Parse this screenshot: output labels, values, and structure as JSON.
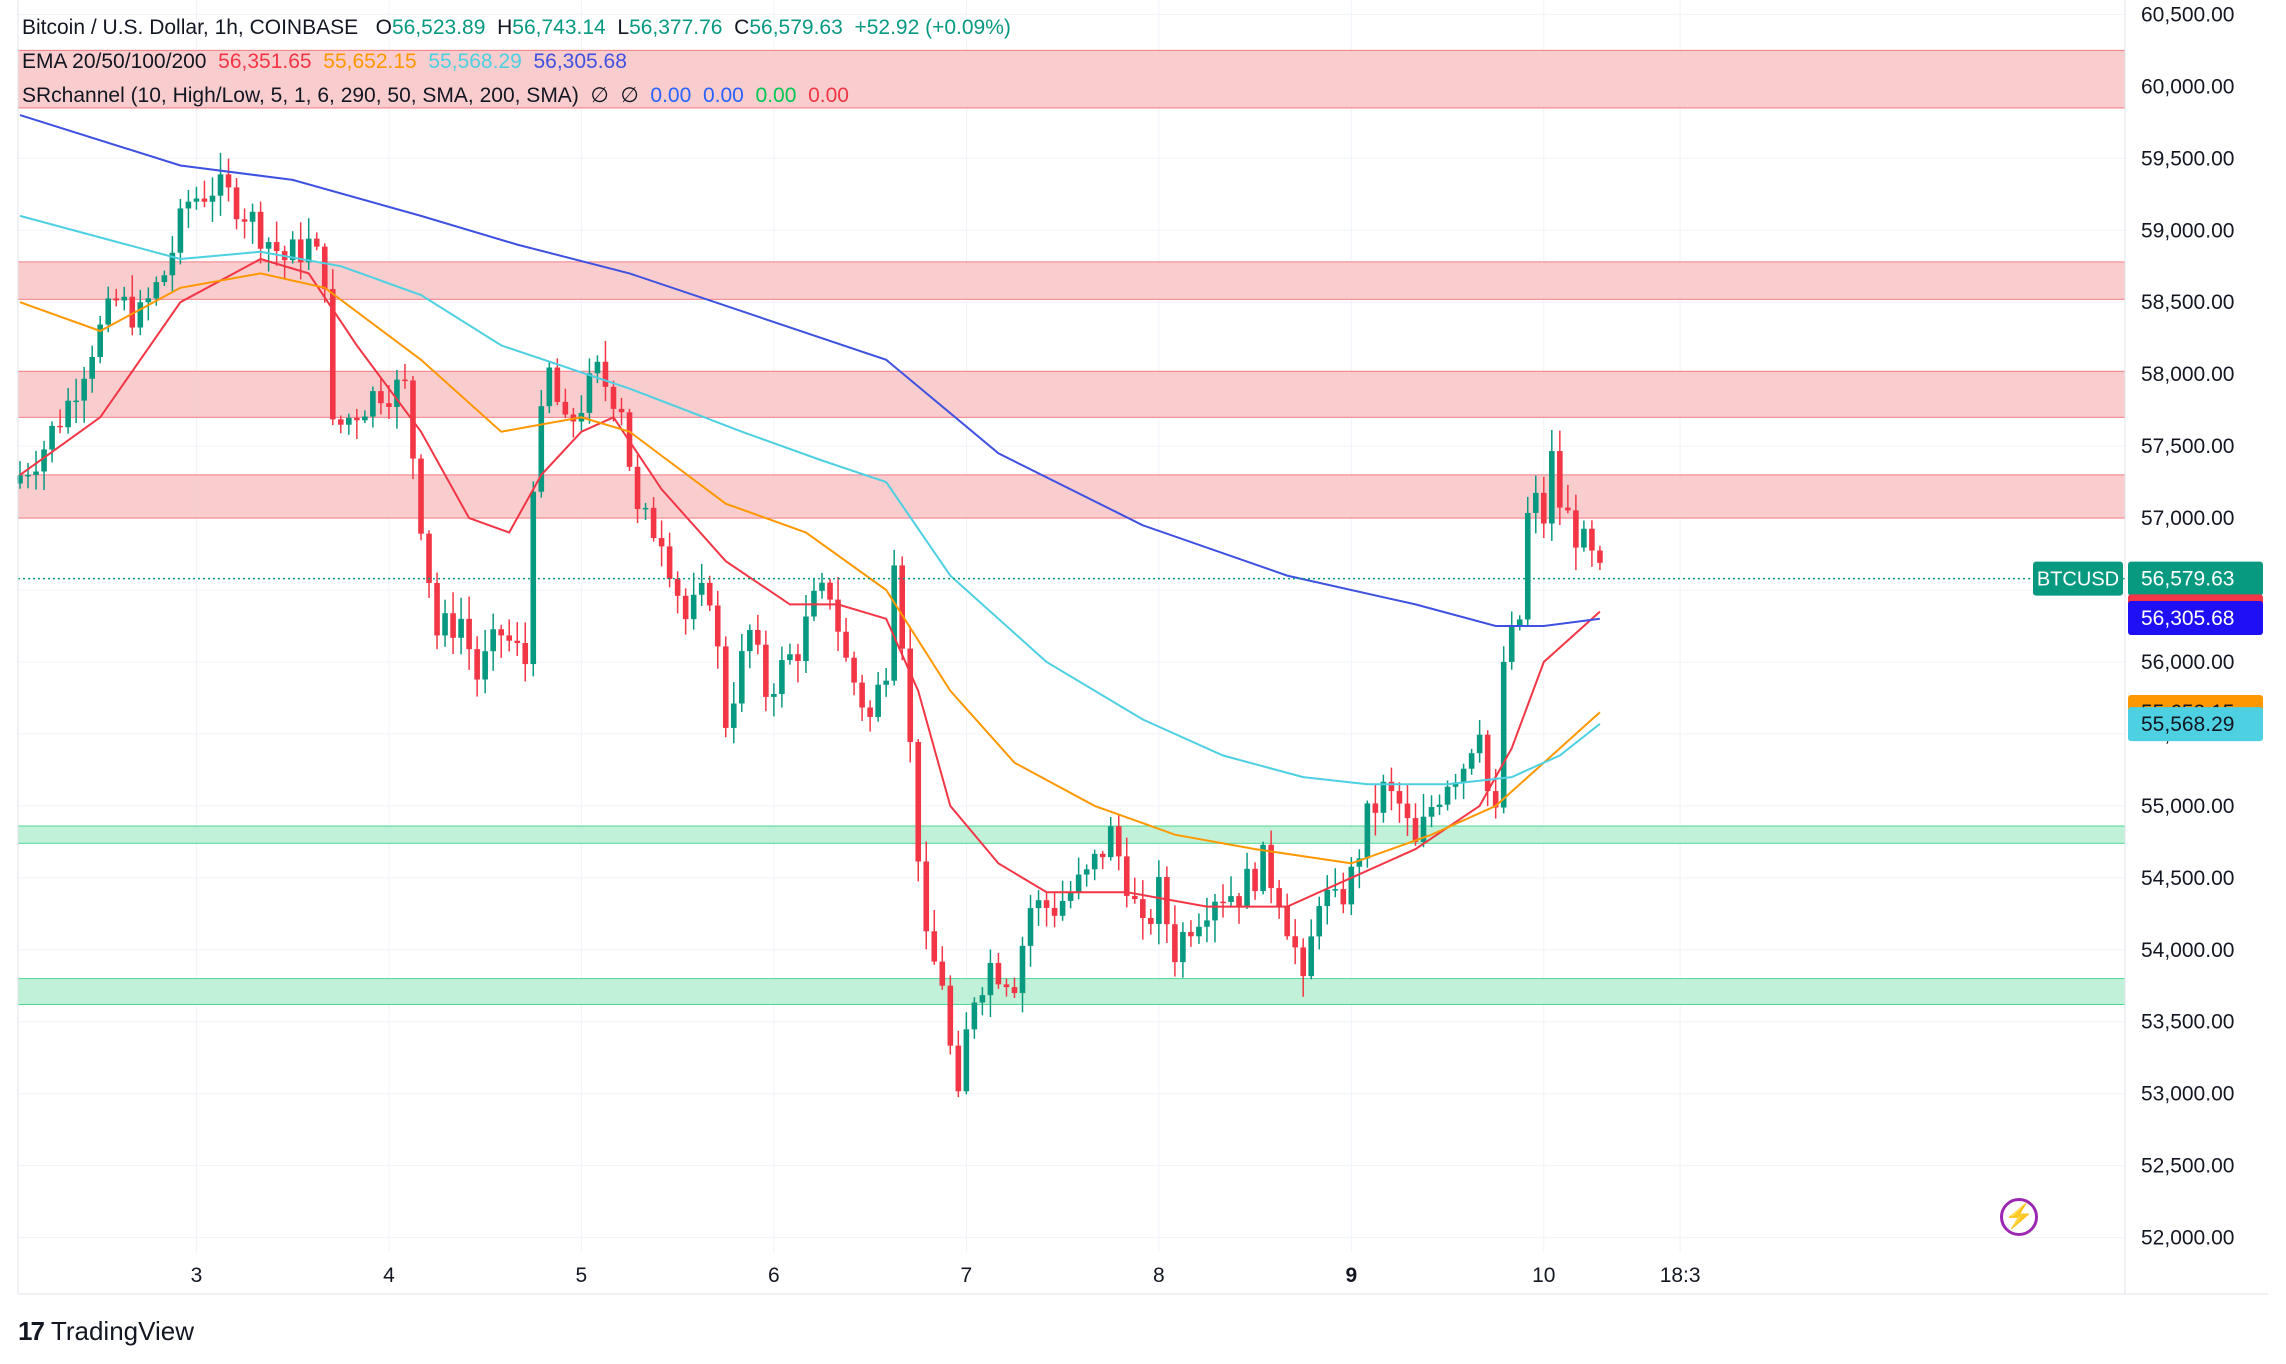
{
  "header": {
    "symbol": "Bitcoin / U.S. Dollar, 1h, COINBASE",
    "open_label": "O",
    "open": "56,523.89",
    "high_label": "H",
    "high": "56,743.14",
    "low_label": "L",
    "low": "56,377.76",
    "close_label": "C",
    "close": "56,579.63",
    "change": "+52.92 (+0.09%)"
  },
  "ema_legend": {
    "label": "EMA 20/50/100/200",
    "v20": "56,351.65",
    "v50": "55,652.15",
    "v100": "55,568.29",
    "v200": "56,305.68"
  },
  "sr_legend": {
    "label": "SRchannel (10, High/Low, 5, 1, 6, 290, 50, SMA, 200, SMA)",
    "symbol_a": "∅",
    "symbol_b": "∅",
    "v1": "0.00",
    "v2": "0.00",
    "v3": "0.00",
    "v4": "0.00"
  },
  "colors": {
    "up": "#089981",
    "down": "#f23645",
    "ema20": "#f23645",
    "ema50": "#ff9800",
    "ema100": "#4dd0e1",
    "ema200": "#3f51e0",
    "resistance": "#f8c4c6",
    "support": "#b6f0d2",
    "price_tag": "#089981"
  },
  "footer": {
    "brand": "TradingView",
    "mark": "17",
    "bolt_icon": "lightning-bolt-icon"
  },
  "chart_data": {
    "type": "candlestick",
    "title": "Bitcoin / U.S. Dollar, 1h, COINBASE",
    "ylim": [
      51900,
      60600
    ],
    "y_ticks": [
      "52,000.00",
      "52,500.00",
      "53,000.00",
      "53,500.00",
      "54,000.00",
      "54,500.00",
      "55,000.00",
      "55,500.00",
      "56,000.00",
      "56,500.00",
      "57,000.00",
      "57,500.00",
      "58,000.00",
      "58,500.00",
      "59,000.00",
      "59,500.00",
      "60,000.00",
      "60,500.00"
    ],
    "y_tick_values": [
      52000,
      52500,
      53000,
      53500,
      54000,
      54500,
      55000,
      55500,
      56000,
      56500,
      57000,
      57500,
      58000,
      58500,
      59000,
      59500,
      60000,
      60500
    ],
    "x_ticks": [
      "3",
      "4",
      "5",
      "6",
      "7",
      "8",
      "9",
      "10",
      "18:3"
    ],
    "x_tick_hours": [
      22,
      46,
      70,
      94,
      118,
      142,
      166,
      190,
      207
    ],
    "bold_x_ticks": [
      "9"
    ],
    "last_hour": 197,
    "current_price": 56579.63,
    "price_labels": [
      {
        "name": "BTCUSD",
        "text": "BTCUSD",
        "value": "56,579.63",
        "price": 56579.63,
        "color": "#089981"
      },
      {
        "name": "ema20",
        "value": "56,351.65",
        "price": 56351.65,
        "color": "#f23645"
      },
      {
        "name": "ema200",
        "value": "56,305.68",
        "price": 56305.68,
        "color": "#1e0ff5"
      },
      {
        "name": "ema50",
        "value": "55,652.15",
        "price": 55652.15,
        "color": "#ff9800"
      },
      {
        "name": "ema100",
        "value": "55,568.29",
        "price": 55568.29,
        "color": "#4dd0e1"
      }
    ],
    "resistance_zones": [
      [
        59850,
        60250
      ],
      [
        58520,
        58780
      ],
      [
        57700,
        58020
      ],
      [
        57000,
        57300
      ]
    ],
    "support_zones": [
      [
        54740,
        54860
      ],
      [
        53620,
        53800
      ]
    ],
    "candle_keypoints": [
      [
        0,
        57300
      ],
      [
        3,
        57500
      ],
      [
        6,
        57800
      ],
      [
        9,
        58200
      ],
      [
        12,
        58500
      ],
      [
        15,
        58400
      ],
      [
        18,
        58700
      ],
      [
        21,
        59200
      ],
      [
        24,
        59300
      ],
      [
        27,
        59200
      ],
      [
        30,
        59000
      ],
      [
        33,
        58800
      ],
      [
        36,
        58900
      ],
      [
        38,
        58700
      ],
      [
        39,
        57600
      ],
      [
        41,
        57700
      ],
      [
        45,
        57900
      ],
      [
        48,
        57900
      ],
      [
        50,
        57000
      ],
      [
        52,
        56200
      ],
      [
        55,
        56300
      ],
      [
        57,
        55900
      ],
      [
        60,
        56200
      ],
      [
        63,
        56000
      ],
      [
        64,
        57300
      ],
      [
        66,
        58000
      ],
      [
        68,
        57600
      ],
      [
        72,
        58000
      ],
      [
        75,
        57800
      ],
      [
        77,
        57000
      ],
      [
        80,
        56900
      ],
      [
        83,
        56300
      ],
      [
        86,
        56500
      ],
      [
        88,
        55600
      ],
      [
        91,
        56200
      ],
      [
        93,
        55800
      ],
      [
        97,
        56100
      ],
      [
        99,
        56400
      ],
      [
        101,
        56500
      ],
      [
        103,
        56000
      ],
      [
        106,
        55600
      ],
      [
        108,
        56000
      ],
      [
        109,
        56800
      ],
      [
        110,
        56200
      ],
      [
        111,
        55400
      ],
      [
        112,
        54700
      ],
      [
        113,
        54000
      ],
      [
        115,
        53800
      ],
      [
        116,
        53300
      ],
      [
        117,
        52900
      ],
      [
        118,
        53400
      ],
      [
        119,
        53700
      ],
      [
        121,
        53900
      ],
      [
        124,
        53800
      ],
      [
        126,
        54300
      ],
      [
        129,
        54300
      ],
      [
        133,
        54500
      ],
      [
        136,
        54800
      ],
      [
        138,
        54500
      ],
      [
        140,
        54100
      ],
      [
        142,
        54400
      ],
      [
        144,
        54000
      ],
      [
        146,
        54200
      ],
      [
        149,
        54400
      ],
      [
        152,
        54400
      ],
      [
        155,
        54600
      ],
      [
        157,
        54400
      ],
      [
        159,
        54000
      ],
      [
        160,
        53700
      ],
      [
        162,
        54400
      ],
      [
        164,
        54300
      ],
      [
        166,
        54500
      ],
      [
        168,
        54900
      ],
      [
        170,
        55100
      ],
      [
        172,
        55000
      ],
      [
        174,
        54700
      ],
      [
        176,
        55000
      ],
      [
        178,
        55200
      ],
      [
        180,
        55300
      ],
      [
        182,
        55600
      ],
      [
        183,
        55100
      ],
      [
        184,
        54900
      ],
      [
        185,
        56000
      ],
      [
        187,
        56300
      ],
      [
        188,
        57000
      ],
      [
        189,
        57100
      ],
      [
        190,
        57000
      ],
      [
        191,
        57400
      ],
      [
        192,
        57100
      ],
      [
        194,
        56900
      ],
      [
        196,
        56700
      ],
      [
        197,
        56580
      ]
    ],
    "ema_series": [
      {
        "name": "EMA 20",
        "color": "#f23645",
        "points": [
          [
            0,
            57300
          ],
          [
            10,
            57700
          ],
          [
            20,
            58500
          ],
          [
            30,
            58800
          ],
          [
            36,
            58700
          ],
          [
            42,
            58200
          ],
          [
            50,
            57600
          ],
          [
            56,
            57000
          ],
          [
            61,
            56900
          ],
          [
            65,
            57300
          ],
          [
            70,
            57600
          ],
          [
            74,
            57700
          ],
          [
            80,
            57200
          ],
          [
            88,
            56700
          ],
          [
            96,
            56400
          ],
          [
            102,
            56400
          ],
          [
            108,
            56300
          ],
          [
            112,
            55800
          ],
          [
            116,
            55000
          ],
          [
            122,
            54600
          ],
          [
            128,
            54400
          ],
          [
            138,
            54400
          ],
          [
            148,
            54300
          ],
          [
            158,
            54300
          ],
          [
            166,
            54500
          ],
          [
            174,
            54700
          ],
          [
            182,
            55000
          ],
          [
            186,
            55400
          ],
          [
            190,
            56000
          ],
          [
            197,
            56350
          ]
        ]
      },
      {
        "name": "EMA 50",
        "color": "#ff9800",
        "points": [
          [
            0,
            58500
          ],
          [
            10,
            58300
          ],
          [
            20,
            58600
          ],
          [
            30,
            58700
          ],
          [
            38,
            58600
          ],
          [
            50,
            58100
          ],
          [
            60,
            57600
          ],
          [
            70,
            57700
          ],
          [
            76,
            57600
          ],
          [
            88,
            57100
          ],
          [
            98,
            56900
          ],
          [
            108,
            56500
          ],
          [
            116,
            55800
          ],
          [
            124,
            55300
          ],
          [
            134,
            55000
          ],
          [
            144,
            54800
          ],
          [
            154,
            54700
          ],
          [
            166,
            54600
          ],
          [
            176,
            54800
          ],
          [
            184,
            55000
          ],
          [
            190,
            55300
          ],
          [
            197,
            55650
          ]
        ]
      },
      {
        "name": "EMA 100",
        "color": "#4dd0e1",
        "points": [
          [
            0,
            59100
          ],
          [
            20,
            58800
          ],
          [
            30,
            58850
          ],
          [
            40,
            58750
          ],
          [
            50,
            58550
          ],
          [
            60,
            58200
          ],
          [
            76,
            57900
          ],
          [
            90,
            57600
          ],
          [
            100,
            57400
          ],
          [
            108,
            57250
          ],
          [
            116,
            56600
          ],
          [
            128,
            56000
          ],
          [
            140,
            55600
          ],
          [
            150,
            55350
          ],
          [
            160,
            55200
          ],
          [
            168,
            55150
          ],
          [
            178,
            55150
          ],
          [
            186,
            55200
          ],
          [
            192,
            55350
          ],
          [
            197,
            55570
          ]
        ]
      },
      {
        "name": "EMA 200",
        "color": "#3f51e0",
        "points": [
          [
            0,
            59800
          ],
          [
            20,
            59450
          ],
          [
            34,
            59350
          ],
          [
            50,
            59100
          ],
          [
            62,
            58900
          ],
          [
            76,
            58700
          ],
          [
            92,
            58400
          ],
          [
            108,
            58100
          ],
          [
            122,
            57450
          ],
          [
            140,
            56950
          ],
          [
            158,
            56600
          ],
          [
            174,
            56400
          ],
          [
            184,
            56250
          ],
          [
            190,
            56250
          ],
          [
            197,
            56300
          ]
        ]
      }
    ]
  }
}
